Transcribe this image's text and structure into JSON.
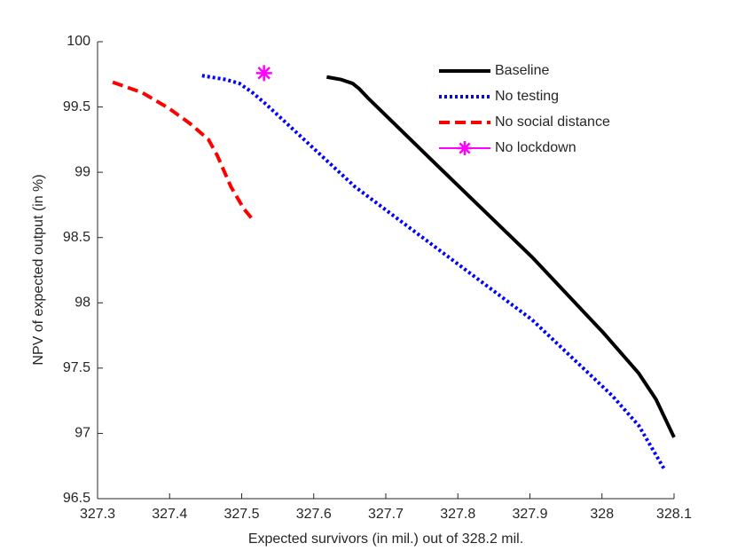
{
  "chart_data": {
    "type": "line",
    "xlabel": "Expected survivors (in mil.) out of 328.2 mil.",
    "ylabel": "NPV of expected output (in %)",
    "xlim": [
      327.3,
      328.1
    ],
    "xticks": [
      327.3,
      327.4,
      327.5,
      327.6,
      327.7,
      327.8,
      327.9,
      328,
      328.1
    ],
    "ylim": [
      96.5,
      100
    ],
    "yticks": [
      96.5,
      97,
      97.5,
      98,
      98.5,
      99,
      99.5,
      100
    ],
    "legend": "northeast",
    "series": [
      {
        "name": "Baseline",
        "color": "#000000",
        "style": "solid",
        "x": [
          327.618,
          327.638,
          327.654,
          327.663,
          327.675,
          327.768,
          327.903,
          328.002,
          328.051,
          328.075,
          328.1
        ],
        "values": [
          99.73,
          99.71,
          99.68,
          99.64,
          99.57,
          99.07,
          98.35,
          97.77,
          97.46,
          97.26,
          96.97
        ]
      },
      {
        "name": "No testing",
        "color": "#0000ff",
        "style": "dotted",
        "x": [
          327.445,
          327.478,
          327.497,
          327.515,
          327.534,
          327.657,
          327.78,
          327.903,
          328.014,
          328.051,
          328.086
        ],
        "values": [
          99.74,
          99.71,
          99.68,
          99.61,
          99.52,
          98.89,
          98.38,
          97.87,
          97.29,
          97.06,
          96.73
        ]
      },
      {
        "name": "No social distance",
        "color": "#ff0000",
        "style": "dashed",
        "x": [
          327.321,
          327.362,
          327.399,
          327.429,
          327.454,
          327.466,
          327.485,
          327.503,
          327.518
        ],
        "values": [
          99.69,
          99.61,
          99.49,
          99.37,
          99.25,
          99.13,
          98.89,
          98.72,
          98.62
        ]
      },
      {
        "name": "No lockdown",
        "color": "#ff00ff",
        "style": "marker",
        "x": [
          327.531
        ],
        "values": [
          99.76
        ]
      }
    ]
  }
}
